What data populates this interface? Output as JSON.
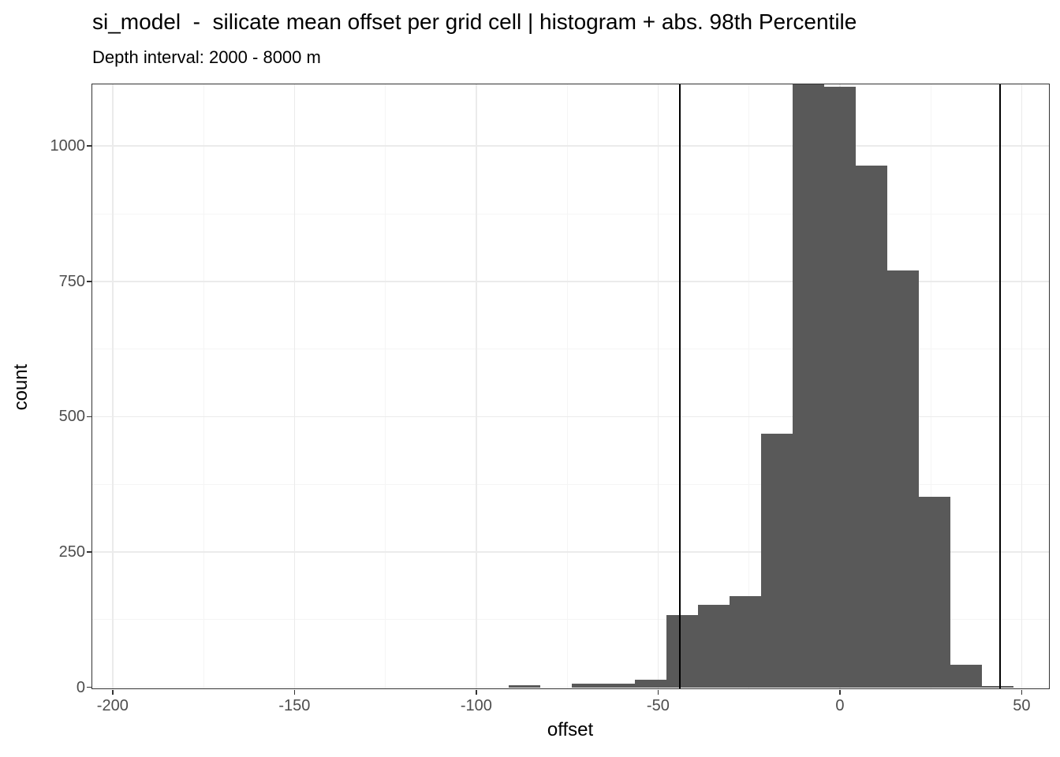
{
  "chart_data": {
    "type": "bar",
    "subtype": "histogram",
    "title": "si_model  -  silicate mean offset per grid cell | histogram + abs. 98th Percentile",
    "subtitle": "Depth interval: 2000 - 8000 m",
    "xlabel": "offset",
    "ylabel": "count",
    "xlim": [
      -205.6,
      57.5
    ],
    "ylim": [
      -2,
      1114
    ],
    "x_tick_values": [
      -200,
      -150,
      -100,
      -50,
      0,
      50
    ],
    "x_tick_labels": [
      "-200",
      "-150",
      "-100",
      "-50",
      "0",
      "50"
    ],
    "y_tick_values": [
      0,
      250,
      500,
      750,
      1000
    ],
    "y_tick_labels": [
      "0",
      "250",
      "500",
      "750",
      "1000"
    ],
    "grid": "major-and-minor",
    "legend_position": "none",
    "binwidth": 8.667,
    "bars": [
      {
        "center": -86.7,
        "count": 4
      },
      {
        "center": -69.3,
        "count": 7
      },
      {
        "center": -60.7,
        "count": 7
      },
      {
        "center": -52.0,
        "count": 14
      },
      {
        "center": -43.3,
        "count": 134
      },
      {
        "center": -34.7,
        "count": 152
      },
      {
        "center": -26.0,
        "count": 169
      },
      {
        "center": -17.3,
        "count": 469
      },
      {
        "center": -8.7,
        "count": 1114
      },
      {
        "center": 0.0,
        "count": 1110
      },
      {
        "center": 8.7,
        "count": 964
      },
      {
        "center": 17.3,
        "count": 770
      },
      {
        "center": 26.0,
        "count": 352
      },
      {
        "center": 34.7,
        "count": 42
      },
      {
        "center": 43.3,
        "count": 3
      }
    ],
    "vlines": {
      "values": [
        -44,
        44
      ],
      "meaning": "abs. 98th Percentile"
    },
    "colors": {
      "bar_fill": "#595959",
      "vline": "#000000",
      "panel_border": "#333333",
      "grid_major": "#ebebeb",
      "grid_minor": "#f5f5f5",
      "tick_label": "#4d4d4d",
      "text": "#000000",
      "background": "#ffffff"
    }
  }
}
